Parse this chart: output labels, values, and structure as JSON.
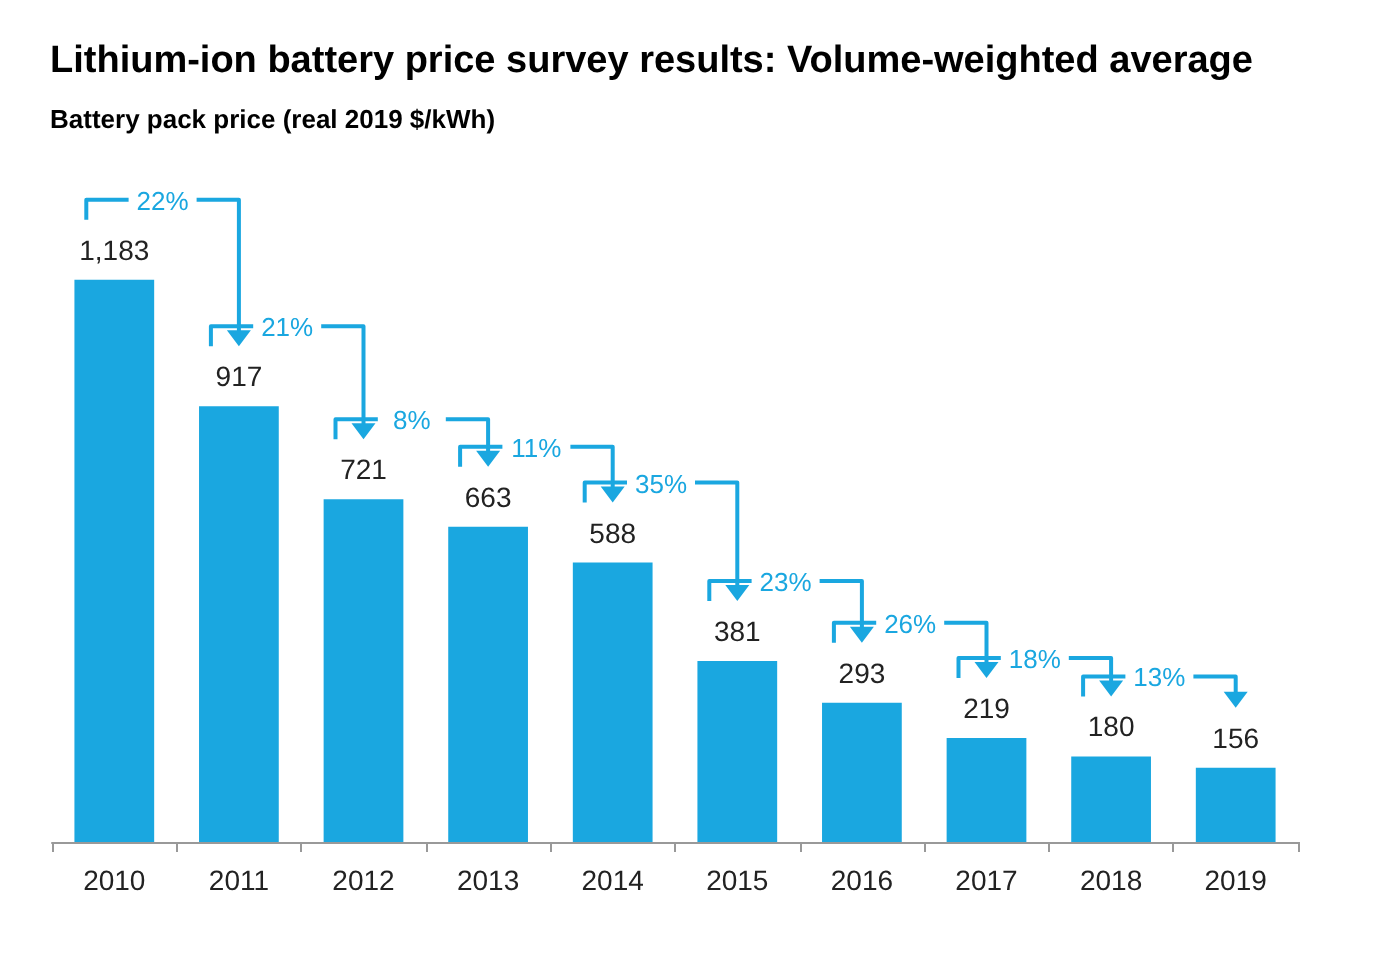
{
  "chart_data": {
    "type": "bar",
    "title": "Lithium-ion battery price survey results: Volume-weighted average",
    "subtitle": "Battery pack price (real 2019 $/kWh)",
    "categories": [
      "2010",
      "2011",
      "2012",
      "2013",
      "2014",
      "2015",
      "2016",
      "2017",
      "2018",
      "2019"
    ],
    "values": [
      1183,
      917,
      721,
      663,
      588,
      381,
      293,
      219,
      180,
      156
    ],
    "value_labels": [
      "1,183",
      "917",
      "721",
      "663",
      "588",
      "381",
      "293",
      "219",
      "180",
      "156"
    ],
    "color": "#1aa7e0",
    "annotations": [
      "22%",
      "21%",
      "8%",
      "11%",
      "35%",
      "23%",
      "26%",
      "18%",
      "13%"
    ]
  }
}
